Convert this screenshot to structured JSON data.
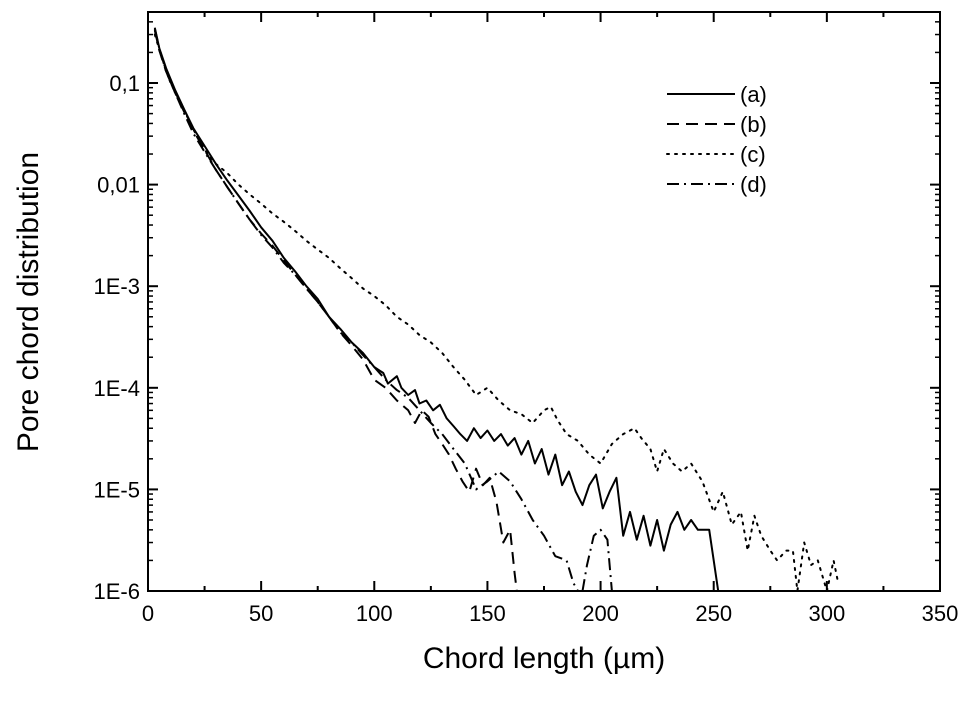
{
  "chart_data": {
    "type": "line",
    "title": "",
    "xlabel": "Chord length (µm)",
    "ylabel": "Pore chord distribution",
    "xlim": [
      0,
      350
    ],
    "ylim": [
      1e-06,
      0.5
    ],
    "yscale": "log",
    "grid": false,
    "legend_position": "top-right",
    "x_ticks": [
      0,
      50,
      100,
      150,
      200,
      250,
      300,
      350
    ],
    "x_tick_labels": [
      "0",
      "50",
      "100",
      "150",
      "200",
      "250",
      "300",
      "350"
    ],
    "y_ticks": [
      1e-06,
      1e-05,
      0.0001,
      0.001,
      0.01,
      0.1
    ],
    "y_tick_labels": [
      "1E-6",
      "1E-5",
      "1E-4",
      "1E-3",
      "0,01",
      "0,1"
    ],
    "series": [
      {
        "name": "(a)",
        "style": "solid",
        "points": [
          [
            3,
            0.35
          ],
          [
            5,
            0.22
          ],
          [
            8,
            0.14
          ],
          [
            12,
            0.085
          ],
          [
            16,
            0.055
          ],
          [
            20,
            0.036
          ],
          [
            25,
            0.024
          ],
          [
            30,
            0.016
          ],
          [
            35,
            0.011
          ],
          [
            40,
            0.0078
          ],
          [
            45,
            0.0055
          ],
          [
            50,
            0.0038
          ],
          [
            55,
            0.0028
          ],
          [
            60,
            0.0019
          ],
          [
            65,
            0.0014
          ],
          [
            70,
            0.001
          ],
          [
            75,
            0.00075
          ],
          [
            80,
            0.0005
          ],
          [
            85,
            0.00038
          ],
          [
            90,
            0.00028
          ],
          [
            95,
            0.00022
          ],
          [
            100,
            0.00016
          ],
          [
            104,
            0.00014
          ],
          [
            106,
            0.00011
          ],
          [
            110,
            0.00013
          ],
          [
            112,
            0.0001
          ],
          [
            115,
            8.5e-05
          ],
          [
            118,
            9.5e-05
          ],
          [
            120,
            7e-05
          ],
          [
            123,
            7.5e-05
          ],
          [
            126,
            6e-05
          ],
          [
            129,
            6.8e-05
          ],
          [
            132,
            5e-05
          ],
          [
            135,
            4.2e-05
          ],
          [
            138,
            3.5e-05
          ],
          [
            141,
            3e-05
          ],
          [
            144,
            4e-05
          ],
          [
            147,
            3.2e-05
          ],
          [
            150,
            3.8e-05
          ],
          [
            153,
            3e-05
          ],
          [
            156,
            3.5e-05
          ],
          [
            159,
            2.7e-05
          ],
          [
            162,
            3.2e-05
          ],
          [
            165,
            2.2e-05
          ],
          [
            168,
            3e-05
          ],
          [
            171,
            1.8e-05
          ],
          [
            174,
            2.5e-05
          ],
          [
            177,
            1.4e-05
          ],
          [
            180,
            2.2e-05
          ],
          [
            183,
            1.1e-05
          ],
          [
            186,
            1.5e-05
          ],
          [
            189,
            9.5e-06
          ],
          [
            192,
            7e-06
          ],
          [
            195,
            1.1e-05
          ],
          [
            198,
            1.4e-05
          ],
          [
            201,
            6.5e-06
          ],
          [
            204,
            9.5e-06
          ],
          [
            207,
            1.3e-05
          ],
          [
            210,
            3.5e-06
          ],
          [
            213,
            6e-06
          ],
          [
            216,
            3.2e-06
          ],
          [
            219,
            5.5e-06
          ],
          [
            222,
            2.8e-06
          ],
          [
            225,
            5e-06
          ],
          [
            228,
            2.5e-06
          ],
          [
            231,
            4.5e-06
          ],
          [
            234,
            6e-06
          ],
          [
            237,
            4e-06
          ],
          [
            240,
            5e-06
          ],
          [
            243,
            4e-06
          ],
          [
            248,
            4e-06
          ],
          [
            250,
            2e-06
          ],
          [
            252,
            1e-06
          ]
        ]
      },
      {
        "name": "(b)",
        "style": "dashed",
        "points": [
          [
            3,
            0.33
          ],
          [
            5,
            0.21
          ],
          [
            8,
            0.13
          ],
          [
            12,
            0.08
          ],
          [
            16,
            0.052
          ],
          [
            20,
            0.034
          ],
          [
            25,
            0.022
          ],
          [
            30,
            0.014
          ],
          [
            35,
            0.0095
          ],
          [
            40,
            0.0065
          ],
          [
            45,
            0.0045
          ],
          [
            50,
            0.0033
          ],
          [
            55,
            0.0025
          ],
          [
            60,
            0.0018
          ],
          [
            65,
            0.0013
          ],
          [
            70,
            0.00095
          ],
          [
            75,
            0.0007
          ],
          [
            80,
            0.0005
          ],
          [
            85,
            0.00035
          ],
          [
            90,
            0.00026
          ],
          [
            95,
            0.00019
          ],
          [
            100,
            0.00012
          ],
          [
            105,
            0.0001
          ],
          [
            110,
            7.5e-05
          ],
          [
            115,
            6e-05
          ],
          [
            118,
            4.5e-05
          ],
          [
            121,
            6e-05
          ],
          [
            124,
            5.2e-05
          ],
          [
            127,
            3.5e-05
          ],
          [
            130,
            2.8e-05
          ],
          [
            133,
            2.2e-05
          ],
          [
            136,
            1.6e-05
          ],
          [
            139,
            1.2e-05
          ],
          [
            142,
            9.5e-06
          ],
          [
            145,
            1.6e-05
          ],
          [
            148,
            1.1e-05
          ],
          [
            151,
            1.3e-05
          ],
          [
            154,
            7.5e-06
          ],
          [
            157,
            3e-06
          ],
          [
            160,
            4e-06
          ],
          [
            162,
            1.5e-06
          ],
          [
            163,
            1e-06
          ]
        ]
      },
      {
        "name": "(c)",
        "style": "dotted",
        "points": [
          [
            3,
            0.3
          ],
          [
            6,
            0.18
          ],
          [
            10,
            0.1
          ],
          [
            15,
            0.06
          ],
          [
            20,
            0.035
          ],
          [
            25,
            0.022
          ],
          [
            30,
            0.016
          ],
          [
            35,
            0.013
          ],
          [
            40,
            0.01
          ],
          [
            45,
            0.008
          ],
          [
            50,
            0.0065
          ],
          [
            55,
            0.0052
          ],
          [
            60,
            0.0043
          ],
          [
            65,
            0.0035
          ],
          [
            70,
            0.0028
          ],
          [
            75,
            0.0023
          ],
          [
            80,
            0.0019
          ],
          [
            85,
            0.0015
          ],
          [
            90,
            0.0012
          ],
          [
            95,
            0.00095
          ],
          [
            100,
            0.0008
          ],
          [
            105,
            0.00065
          ],
          [
            110,
            0.0005
          ],
          [
            115,
            0.00042
          ],
          [
            120,
            0.00033
          ],
          [
            125,
            0.00028
          ],
          [
            130,
            0.00022
          ],
          [
            135,
            0.00016
          ],
          [
            140,
            0.00012
          ],
          [
            145,
            8.5e-05
          ],
          [
            150,
            0.0001
          ],
          [
            155,
            7.5e-05
          ],
          [
            160,
            6e-05
          ],
          [
            165,
            5.5e-05
          ],
          [
            170,
            4.5e-05
          ],
          [
            175,
            6e-05
          ],
          [
            178,
            6.5e-05
          ],
          [
            181,
            4.8e-05
          ],
          [
            185,
            3.5e-05
          ],
          [
            190,
            3e-05
          ],
          [
            195,
            2.2e-05
          ],
          [
            200,
            1.8e-05
          ],
          [
            205,
            2.8e-05
          ],
          [
            210,
            3.5e-05
          ],
          [
            215,
            4e-05
          ],
          [
            218,
            3.2e-05
          ],
          [
            222,
            2.5e-05
          ],
          [
            225,
            1.5e-05
          ],
          [
            228,
            2.5e-05
          ],
          [
            232,
            1.8e-05
          ],
          [
            236,
            1.5e-05
          ],
          [
            240,
            1.8e-05
          ],
          [
            245,
            1.2e-05
          ],
          [
            250,
            6e-06
          ],
          [
            254,
            9.5e-06
          ],
          [
            258,
            4.5e-06
          ],
          [
            262,
            6e-06
          ],
          [
            265,
            2.5e-06
          ],
          [
            268,
            5.5e-06
          ],
          [
            271,
            3.5e-06
          ],
          [
            275,
            2.5e-06
          ],
          [
            278,
            2e-06
          ],
          [
            282,
            2.5e-06
          ],
          [
            285,
            2.5e-06
          ],
          [
            287,
            1e-06
          ],
          [
            290,
            3e-06
          ],
          [
            293,
            1.8e-06
          ],
          [
            296,
            2e-06
          ],
          [
            300,
            1e-06
          ],
          [
            303,
            2e-06
          ],
          [
            305,
            1.2e-06
          ]
        ]
      },
      {
        "name": "(d)",
        "style": "dashdot",
        "points": [
          [
            3,
            0.34
          ],
          [
            5,
            0.22
          ],
          [
            8,
            0.13
          ],
          [
            12,
            0.08
          ],
          [
            16,
            0.05
          ],
          [
            20,
            0.032
          ],
          [
            25,
            0.021
          ],
          [
            30,
            0.014
          ],
          [
            35,
            0.0095
          ],
          [
            40,
            0.0065
          ],
          [
            45,
            0.0045
          ],
          [
            50,
            0.0032
          ],
          [
            55,
            0.0024
          ],
          [
            60,
            0.0017
          ],
          [
            65,
            0.0013
          ],
          [
            70,
            0.00095
          ],
          [
            75,
            0.0007
          ],
          [
            80,
            0.0005
          ],
          [
            85,
            0.00035
          ],
          [
            90,
            0.00028
          ],
          [
            95,
            0.00021
          ],
          [
            100,
            0.00016
          ],
          [
            105,
            0.00012
          ],
          [
            110,
            9.5e-05
          ],
          [
            115,
            8e-05
          ],
          [
            120,
            6e-05
          ],
          [
            125,
            4.5e-05
          ],
          [
            130,
            3.5e-05
          ],
          [
            135,
            2.5e-05
          ],
          [
            140,
            1.8e-05
          ],
          [
            145,
            1e-05
          ],
          [
            150,
            1.2e-05
          ],
          [
            155,
            1.5e-05
          ],
          [
            160,
            1.2e-05
          ],
          [
            165,
            8e-06
          ],
          [
            170,
            5e-06
          ],
          [
            175,
            3.5e-06
          ],
          [
            180,
            2.2e-06
          ],
          [
            185,
            2e-06
          ],
          [
            188,
            1.2e-06
          ],
          [
            190,
            1e-06
          ]
        ]
      },
      {
        "name": "",
        "style": "dashdot",
        "points": [
          [
            192,
            1e-06
          ],
          [
            194,
            1.8e-06
          ],
          [
            197,
            3.5e-06
          ],
          [
            200,
            4e-06
          ],
          [
            203,
            3.2e-06
          ],
          [
            205,
            1e-06
          ]
        ]
      }
    ]
  }
}
